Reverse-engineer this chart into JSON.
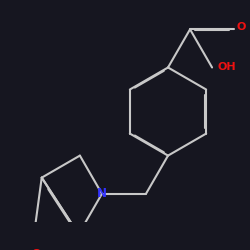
{
  "bg": "#161620",
  "bond_color": "#c8c8c8",
  "N_color": "#3333ff",
  "O_color": "#ee1111",
  "lw": 1.5,
  "dbo": 0.018,
  "figsize": [
    2.5,
    2.5
  ],
  "dpi": 100,
  "xlim": [
    -0.5,
    4.8
  ],
  "ylim": [
    -2.2,
    2.8
  ]
}
